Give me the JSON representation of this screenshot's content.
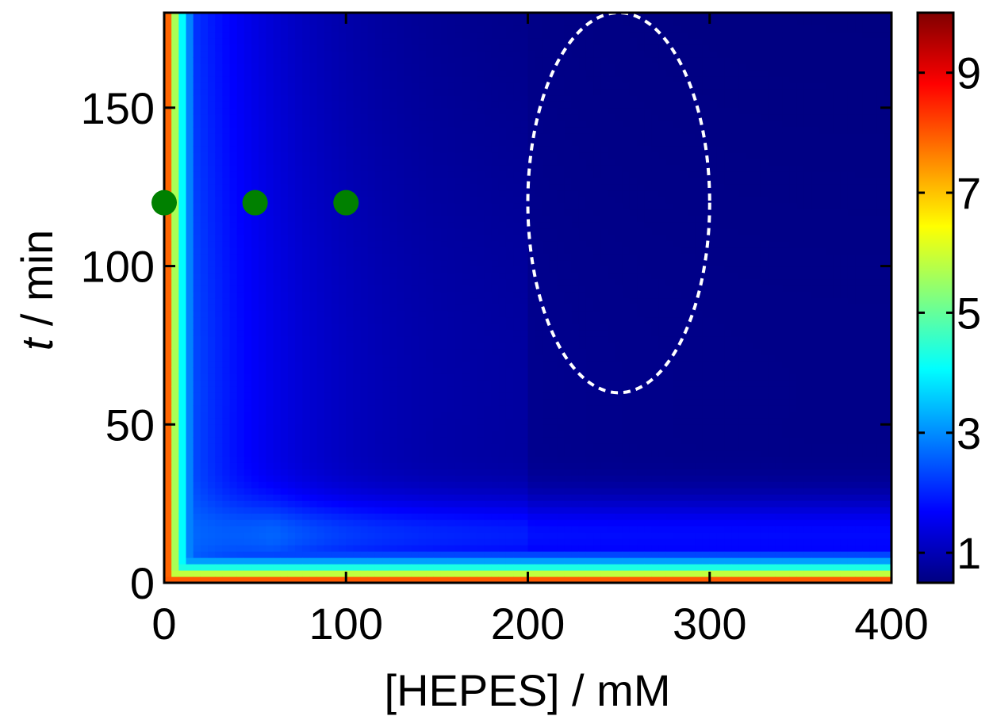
{
  "chart_data": {
    "type": "heatmap",
    "title": "",
    "xlabel": "[HEPES] / mM",
    "ylabel_italic": "t",
    "ylabel_rest": " / min",
    "xlim": [
      0,
      400
    ],
    "ylim": [
      0,
      180
    ],
    "x_ticks": [
      0,
      100,
      200,
      300,
      400
    ],
    "y_ticks": [
      0,
      50,
      100,
      150
    ],
    "x_tick_labels": [
      "0",
      "100",
      "200",
      "300",
      "400"
    ],
    "y_tick_labels": [
      "0",
      "50",
      "100",
      "150"
    ],
    "colorbar": {
      "range": [
        0.5,
        10
      ],
      "ticks": [
        1,
        3,
        5,
        7,
        9
      ],
      "tick_labels": [
        "1",
        "3",
        "5",
        "7",
        "9"
      ],
      "colormap": "jet"
    },
    "points": [
      {
        "x": 0,
        "y": 120
      },
      {
        "x": 50,
        "y": 120
      },
      {
        "x": 100,
        "y": 120
      }
    ],
    "point_color": "#008000",
    "ellipse": {
      "cx": 250,
      "cy": 120,
      "rx": 50,
      "ry": 60,
      "style": "dashed",
      "color": "#ffffff"
    },
    "grid": false
  }
}
